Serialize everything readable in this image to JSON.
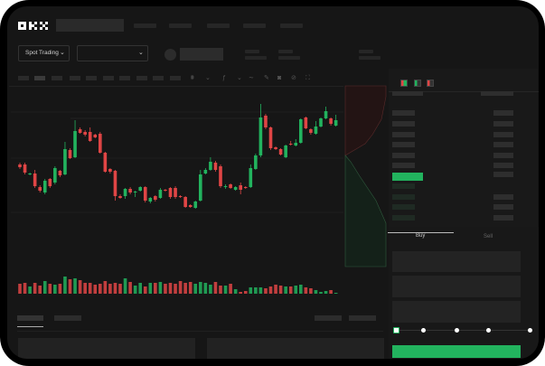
{
  "brand": {
    "logo": "OKX"
  },
  "header": {
    "market_selector": {
      "label": "Spot Trading",
      "icon": "chevron-down-icon"
    },
    "pair_selector": {
      "icon": "chevron-down-icon"
    }
  },
  "toolbar": {
    "icons": [
      "chart-type-icon",
      "indicator-icon",
      "line-tool-icon",
      "pencil-icon",
      "camera-icon",
      "settings-icon",
      "fullscreen-icon"
    ]
  },
  "order_book": {
    "view_icons": [
      "book-both-icon",
      "book-buy-icon",
      "book-sell-icon"
    ]
  },
  "trade_panel": {
    "tabs": [
      {
        "label": "Buy",
        "active": true
      },
      {
        "label": "Sell",
        "active": false
      }
    ],
    "slider_percent": 0
  },
  "colors": {
    "up": "#22b35e",
    "down": "#e04545",
    "background": "#161616",
    "panel": "#1c1c1c"
  },
  "chart_data": {
    "type": "candlestick",
    "ylim": [
      65,
      190
    ],
    "candles": [
      [
        118,
        115,
        120,
        113
      ],
      [
        118,
        109,
        120,
        107
      ],
      [
        107,
        108,
        109,
        106
      ],
      [
        108,
        94,
        112,
        92
      ],
      [
        93,
        89,
        95,
        87
      ],
      [
        87,
        100,
        102,
        85
      ],
      [
        102,
        94,
        103,
        92
      ],
      [
        98,
        114,
        116,
        96
      ],
      [
        111,
        106,
        112,
        104
      ],
      [
        107,
        135,
        143,
        106
      ],
      [
        134,
        125,
        136,
        124
      ],
      [
        126,
        155,
        167,
        125
      ],
      [
        157,
        153,
        159,
        152
      ],
      [
        154,
        151,
        156,
        149
      ],
      [
        154,
        144,
        159,
        143
      ],
      [
        151,
        148,
        152,
        147
      ],
      [
        152,
        131,
        154,
        130
      ],
      [
        131,
        110,
        132,
        109
      ],
      [
        113,
        110,
        114,
        108
      ],
      [
        111,
        83,
        112,
        78
      ],
      [
        83,
        81,
        85,
        80
      ],
      [
        83,
        91,
        92,
        80
      ],
      [
        91,
        87,
        93,
        85
      ],
      [
        87,
        88,
        89,
        82
      ],
      [
        89,
        93,
        94,
        88
      ],
      [
        93,
        78,
        94,
        76
      ],
      [
        77,
        81,
        82,
        75
      ],
      [
        83,
        79,
        84,
        77
      ],
      [
        81,
        90,
        92,
        80
      ],
      [
        90,
        89,
        91,
        88
      ],
      [
        92,
        82,
        93,
        80
      ],
      [
        92,
        82,
        94,
        80
      ],
      [
        83,
        82,
        84,
        81
      ],
      [
        82,
        71,
        83,
        70
      ],
      [
        73,
        71,
        74,
        70
      ],
      [
        70,
        77,
        78,
        69
      ],
      [
        78,
        107,
        112,
        77
      ],
      [
        108,
        112,
        114,
        107
      ],
      [
        112,
        121,
        126,
        111
      ],
      [
        120,
        112,
        122,
        110
      ],
      [
        116,
        94,
        118,
        92
      ],
      [
        93,
        94,
        96,
        91
      ],
      [
        96,
        92,
        97,
        91
      ],
      [
        90,
        93,
        94,
        89
      ],
      [
        95,
        90,
        98,
        85
      ],
      [
        93,
        92,
        94,
        91
      ],
      [
        93,
        114,
        118,
        92
      ],
      [
        113,
        128,
        130,
        112
      ],
      [
        128,
        170,
        185,
        126
      ],
      [
        172,
        159,
        174,
        157
      ],
      [
        159,
        136,
        160,
        134
      ],
      [
        137,
        135,
        138,
        134
      ],
      [
        135,
        129,
        136,
        128
      ],
      [
        126,
        139,
        140,
        125
      ],
      [
        141,
        140,
        144,
        139
      ],
      [
        139,
        142,
        146,
        138
      ],
      [
        142,
        168,
        169,
        141
      ],
      [
        170,
        158,
        171,
        157
      ],
      [
        157,
        153,
        158,
        151
      ],
      [
        152,
        160,
        166,
        151
      ],
      [
        160,
        169,
        170,
        159
      ],
      [
        169,
        177,
        182,
        168
      ],
      [
        169,
        163,
        170,
        161
      ],
      [
        161,
        167,
        173,
        160
      ]
    ],
    "volumes": [
      11,
      12,
      8,
      12,
      9,
      14,
      11,
      10,
      11,
      19,
      16,
      17,
      15,
      12,
      12,
      10,
      11,
      14,
      11,
      12,
      11,
      17,
      13,
      9,
      12,
      8,
      12,
      12,
      13,
      11,
      12,
      11,
      14,
      12,
      13,
      11,
      13,
      12,
      10,
      13,
      9,
      9,
      11,
      5,
      2,
      3,
      7,
      7,
      7,
      6,
      8,
      10,
      9,
      8,
      8,
      9,
      10,
      7,
      6,
      4,
      2,
      3,
      4,
      1
    ],
    "depth": {
      "asks": "descending-red",
      "bids": "ascending-green"
    }
  }
}
